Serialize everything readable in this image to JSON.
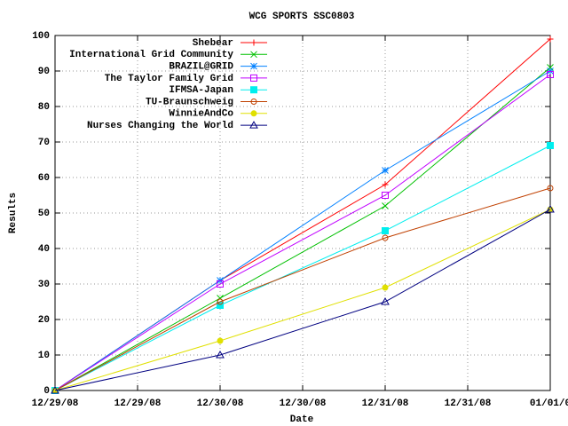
{
  "chart_data": {
    "type": "line",
    "title": "WCG SPORTS SSC0803",
    "x_label": "Date",
    "y_label": "Results",
    "x": [
      0,
      1,
      2,
      3
    ],
    "xlim": [
      0,
      3
    ],
    "xticks": [
      {
        "value": 0,
        "label": "12/29/08"
      },
      {
        "value": 0.5,
        "label": "12/29/08"
      },
      {
        "value": 1,
        "label": "12/30/08"
      },
      {
        "value": 1.5,
        "label": "12/30/08"
      },
      {
        "value": 2,
        "label": "12/31/08"
      },
      {
        "value": 2.5,
        "label": "12/31/08"
      },
      {
        "value": 3,
        "label": "01/01/0"
      }
    ],
    "ylim": [
      0,
      100
    ],
    "yticks": [
      0,
      10,
      20,
      30,
      40,
      50,
      60,
      70,
      80,
      90,
      100
    ],
    "grid": true,
    "legend": "top-left",
    "series": [
      {
        "name": "Shebear",
        "color": "#ff0000",
        "marker": "plus",
        "values": [
          0,
          31,
          58,
          99
        ]
      },
      {
        "name": "International Grid Community",
        "color": "#00c000",
        "marker": "cross",
        "values": [
          0,
          26,
          52,
          91
        ]
      },
      {
        "name": "BRAZIL@GRID",
        "color": "#0080ff",
        "marker": "star",
        "values": [
          0,
          31,
          62,
          90
        ]
      },
      {
        "name": "The Taylor Family Grid",
        "color": "#c000ff",
        "marker": "square",
        "values": [
          0,
          30,
          55,
          89
        ]
      },
      {
        "name": "IFMSA-Japan",
        "color": "#00eeee",
        "marker": "filled-square",
        "values": [
          0,
          24,
          45,
          69
        ]
      },
      {
        "name": "TU-Braunschweig",
        "color": "#c04000",
        "marker": "circle",
        "values": [
          0,
          25,
          43,
          57
        ]
      },
      {
        "name": "WinnieAndCo",
        "color": "#e0e000",
        "marker": "filled-circle",
        "values": [
          0,
          14,
          29,
          51
        ]
      },
      {
        "name": "Nurses Changing the World",
        "color": "#000080",
        "marker": "triangle",
        "values": [
          0,
          10,
          25,
          51
        ]
      }
    ]
  }
}
